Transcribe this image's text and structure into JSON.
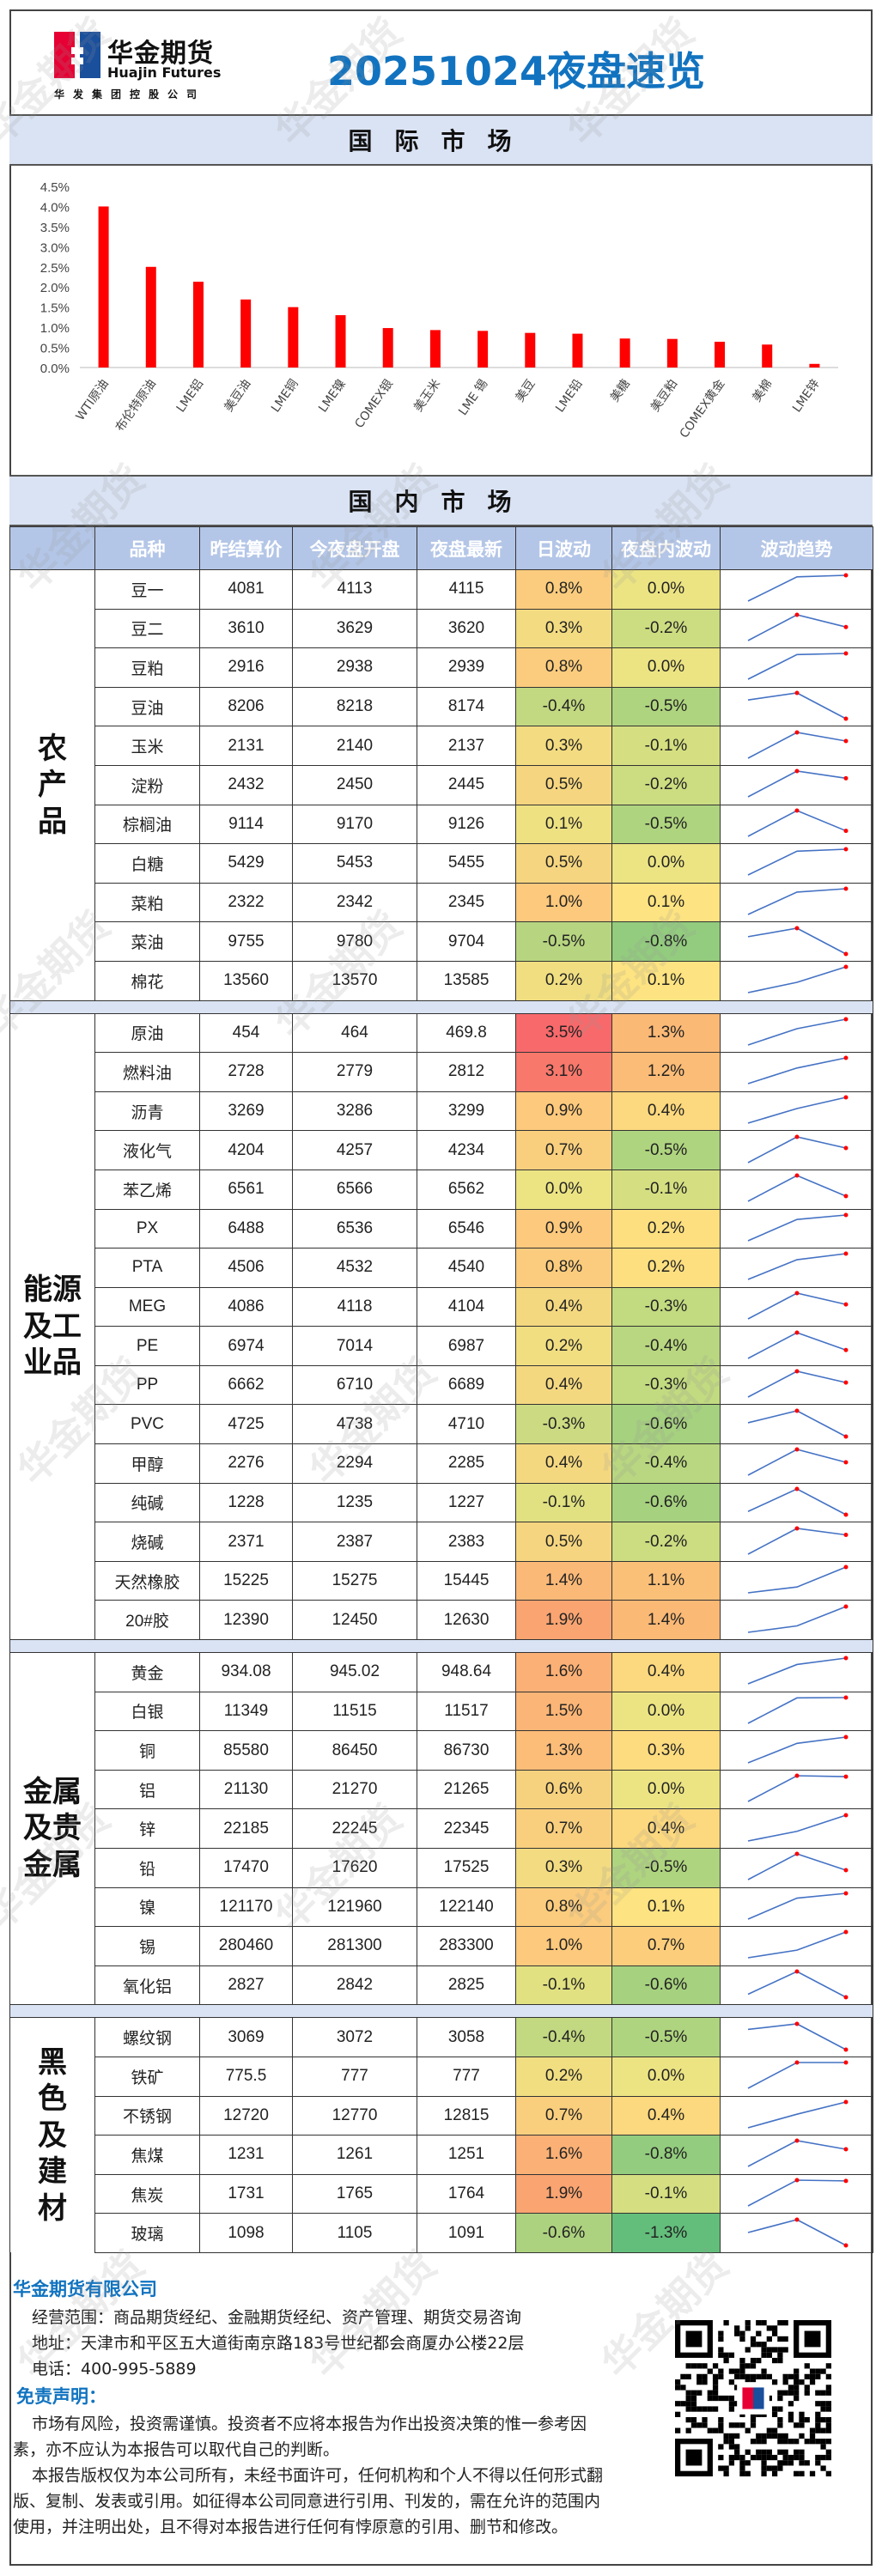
{
  "header": {
    "logo_cn": "华金期货",
    "logo_en": "Huajin Futures",
    "logo_sub": "华发集团控股公司",
    "title": "20251024夜盘速览",
    "watermark": "华金期货"
  },
  "intl_section": {
    "title": "国际市场"
  },
  "chart_data": {
    "type": "bar",
    "title": "",
    "categories": [
      "WTI原油",
      "布伦特原油",
      "LME铝",
      "美豆油",
      "LME铜",
      "LME镍",
      "COMEX银",
      "美玉米",
      "LME 锡",
      "美豆",
      "LME铅",
      "美糖",
      "美豆粕",
      "COMEX黄金",
      "美棉",
      "LME锌"
    ],
    "values": [
      4.0,
      2.5,
      2.13,
      1.69,
      1.5,
      1.3,
      0.98,
      0.93,
      0.91,
      0.86,
      0.84,
      0.72,
      0.71,
      0.64,
      0.57,
      0.09
    ],
    "yticks": [
      "0.0%",
      "0.5%",
      "1.0%",
      "1.5%",
      "2.0%",
      "2.5%",
      "3.0%",
      "3.5%",
      "4.0%",
      "4.5%"
    ],
    "ylim": [
      0,
      4.5
    ],
    "bar_color": "#ff0000",
    "xlabel": "",
    "ylabel": ""
  },
  "domestic_section": {
    "title": "国内市场",
    "columns": [
      "品种",
      "昨结算价",
      "今夜盘开盘",
      "夜盘最新",
      "日波动",
      "夜盘内波动",
      "波动趋势"
    ],
    "groups": [
      {
        "name": "农产品",
        "rows": [
          [
            "豆一",
            "4081",
            "4113",
            "4115",
            "0.8%",
            "0.0%"
          ],
          [
            "豆二",
            "3610",
            "3629",
            "3620",
            "0.3%",
            "-0.2%"
          ],
          [
            "豆粕",
            "2916",
            "2938",
            "2939",
            "0.8%",
            "0.0%"
          ],
          [
            "豆油",
            "8206",
            "8218",
            "8174",
            "-0.4%",
            "-0.5%"
          ],
          [
            "玉米",
            "2131",
            "2140",
            "2137",
            "0.3%",
            "-0.1%"
          ],
          [
            "淀粉",
            "2432",
            "2450",
            "2445",
            "0.5%",
            "-0.2%"
          ],
          [
            "棕榈油",
            "9114",
            "9170",
            "9126",
            "0.1%",
            "-0.5%"
          ],
          [
            "白糖",
            "5429",
            "5453",
            "5455",
            "0.5%",
            "0.0%"
          ],
          [
            "菜粕",
            "2322",
            "2342",
            "2345",
            "1.0%",
            "0.1%"
          ],
          [
            "菜油",
            "9755",
            "9780",
            "9704",
            "-0.5%",
            "-0.8%"
          ],
          [
            "棉花",
            "13560",
            "13570",
            "13585",
            "0.2%",
            "0.1%"
          ]
        ]
      },
      {
        "name": "能源及工业品",
        "rows": [
          [
            "原油",
            "454",
            "464",
            "469.8",
            "3.5%",
            "1.3%"
          ],
          [
            "燃料油",
            "2728",
            "2779",
            "2812",
            "3.1%",
            "1.2%"
          ],
          [
            "沥青",
            "3269",
            "3286",
            "3299",
            "0.9%",
            "0.4%"
          ],
          [
            "液化气",
            "4204",
            "4257",
            "4234",
            "0.7%",
            "-0.5%"
          ],
          [
            "苯乙烯",
            "6561",
            "6566",
            "6562",
            "0.0%",
            "-0.1%"
          ],
          [
            "PX",
            "6488",
            "6536",
            "6546",
            "0.9%",
            "0.2%"
          ],
          [
            "PTA",
            "4506",
            "4532",
            "4540",
            "0.8%",
            "0.2%"
          ],
          [
            "MEG",
            "4086",
            "4118",
            "4104",
            "0.4%",
            "-0.3%"
          ],
          [
            "PE",
            "6974",
            "7014",
            "6987",
            "0.2%",
            "-0.4%"
          ],
          [
            "PP",
            "6662",
            "6710",
            "6689",
            "0.4%",
            "-0.3%"
          ],
          [
            "PVC",
            "4725",
            "4738",
            "4710",
            "-0.3%",
            "-0.6%"
          ],
          [
            "甲醇",
            "2276",
            "2294",
            "2285",
            "0.4%",
            "-0.4%"
          ],
          [
            "纯碱",
            "1228",
            "1235",
            "1227",
            "-0.1%",
            "-0.6%"
          ],
          [
            "烧碱",
            "2371",
            "2387",
            "2383",
            "0.5%",
            "-0.2%"
          ],
          [
            "天然橡胶",
            "15225",
            "15275",
            "15445",
            "1.4%",
            "1.1%"
          ],
          [
            "20#胶",
            "12390",
            "12450",
            "12630",
            "1.9%",
            "1.4%"
          ]
        ]
      },
      {
        "name": "金属及贵金属",
        "rows": [
          [
            "黄金",
            "934.08",
            "945.02",
            "948.64",
            "1.6%",
            "0.4%"
          ],
          [
            "白银",
            "11349",
            "11515",
            "11517",
            "1.5%",
            "0.0%"
          ],
          [
            "铜",
            "85580",
            "86450",
            "86730",
            "1.3%",
            "0.3%"
          ],
          [
            "铝",
            "21130",
            "21270",
            "21265",
            "0.6%",
            "0.0%"
          ],
          [
            "锌",
            "22185",
            "22245",
            "22345",
            "0.7%",
            "0.4%"
          ],
          [
            "铅",
            "17470",
            "17620",
            "17525",
            "0.3%",
            "-0.5%"
          ],
          [
            "镍",
            "121170",
            "121960",
            "122140",
            "0.8%",
            "0.1%"
          ],
          [
            "锡",
            "280460",
            "281300",
            "283300",
            "1.0%",
            "0.7%"
          ],
          [
            "氧化铝",
            "2827",
            "2842",
            "2825",
            "-0.1%",
            "-0.6%"
          ]
        ]
      },
      {
        "name": "黑色及建材",
        "rows": [
          [
            "螺纹钢",
            "3069",
            "3072",
            "3058",
            "-0.4%",
            "-0.5%"
          ],
          [
            "铁矿",
            "775.5",
            "777",
            "777",
            "0.2%",
            "0.0%"
          ],
          [
            "不锈钢",
            "12720",
            "12770",
            "12815",
            "0.7%",
            "0.4%"
          ],
          [
            "焦煤",
            "1231",
            "1261",
            "1251",
            "1.6%",
            "-0.8%"
          ],
          [
            "焦炭",
            "1731",
            "1765",
            "1764",
            "1.9%",
            "-0.1%"
          ],
          [
            "玻璃",
            "1098",
            "1105",
            "1091",
            "-0.6%",
            "-1.3%"
          ]
        ]
      }
    ]
  },
  "colors": {
    "accent": "#1173c0",
    "band": "#dae3f3",
    "header": "#b4c6e7",
    "spark_line": "#4472c4",
    "spark_dot": "#ff0000",
    "heat_neg": "#63be7b",
    "heat_mid": "#ffeb84",
    "heat_pos": "#f8696b"
  },
  "footer": {
    "company": "华金期货有限公司",
    "scope": "经营范围：商品期货经纪、金融期货经纪、资产管理、期货交易咨询",
    "address": "地址：天津市和平区五大道街南京路183号世纪都会商厦办公楼22层",
    "phone": "电话：400-995-5889",
    "disclaimer_title": "免责声明：",
    "disclaimer_1": "市场有风险，投资需谨慎。投资者不应将本报告为作出投资决策的惟一参考因素，亦不应认为本报告可以取代自己的判断。",
    "disclaimer_2": "本报告版权仅为本公司所有，未经书面许可，任何机构和个人不得以任何形式翻版、复制、发表或引用。如征得本公司同意进行引用、刊发的，需在允许的范围内使用，并注明出处，且不得对本报告进行任何有悖原意的引用、删节和修改。"
  }
}
